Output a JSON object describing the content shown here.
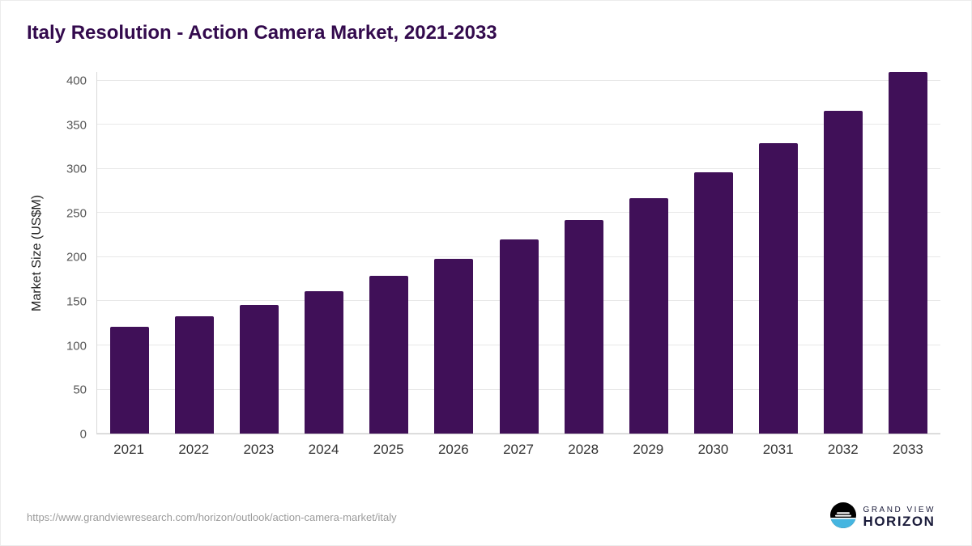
{
  "title": "Italy Resolution - Action Camera Market, 2021-2033",
  "source": {
    "url": "https://www.grandviewresearch.com/horizon/outlook/action-camera-market/italy"
  },
  "logo": {
    "line1": "GRAND VIEW",
    "line2": "HORIZON"
  },
  "colors": {
    "bar": "#401058",
    "title": "#330a4d",
    "gridline": "#e8e8e8",
    "logo_blue": "#45b5e0"
  },
  "chart_data": {
    "type": "bar",
    "title": "Italy Resolution - Action Camera Market, 2021-2033",
    "categories": [
      "2021",
      "2022",
      "2023",
      "2024",
      "2025",
      "2026",
      "2027",
      "2028",
      "2029",
      "2030",
      "2031",
      "2032",
      "2033"
    ],
    "values": [
      121,
      133,
      146,
      161,
      179,
      198,
      220,
      242,
      267,
      296,
      329,
      366,
      410
    ],
    "xlabel": "",
    "ylabel": "Market Size (US$M)",
    "ylim": [
      0,
      410
    ],
    "yticks": [
      0,
      50,
      100,
      150,
      200,
      250,
      300,
      350,
      400
    ],
    "grid": true,
    "legend": false
  }
}
